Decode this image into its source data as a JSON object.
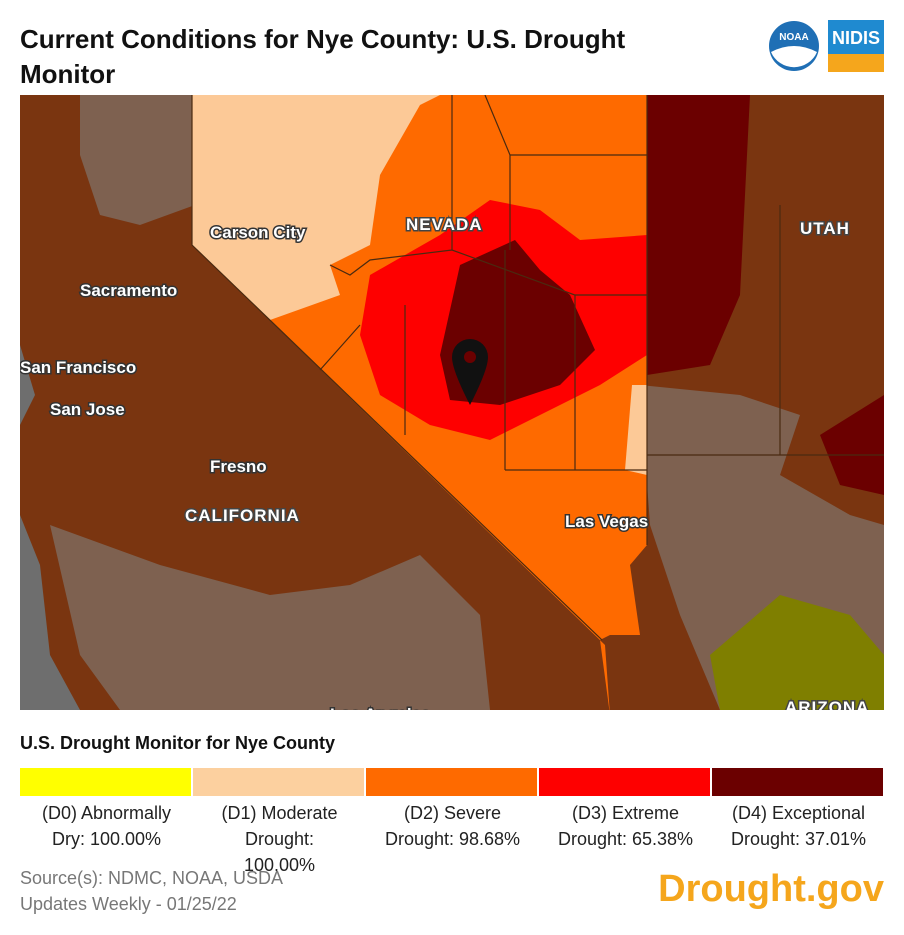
{
  "header": {
    "title": "Current Conditions for Nye County: U.S. Drought Monitor",
    "logos": [
      "NOAA",
      "NIDIS"
    ]
  },
  "map": {
    "labels": [
      "NEVADA",
      "UTAH",
      "Carson City",
      "Sacramento",
      "San Francisco",
      "San Jose",
      "Fresno",
      "CALIFORNIA",
      "Las Vegas",
      "Los Angeles",
      "ARIZONA"
    ]
  },
  "legend": {
    "title": "U.S. Drought Monitor for Nye County",
    "items": [
      {
        "label": "(D0) Abnormally Dry: 100.00%",
        "color": "#ffff00"
      },
      {
        "label": "(D1) Moderate Drought: 100.00%",
        "color": "#fcd09f"
      },
      {
        "label": "(D2) Severe Drought: 98.68%",
        "color": "#fe6a00"
      },
      {
        "label": "(D3) Extreme Drought: 65.38%",
        "color": "#fe0000"
      },
      {
        "label": "(D4) Exceptional Drought: 37.01%",
        "color": "#6b0000"
      }
    ]
  },
  "footer": {
    "sources": "Source(s): NDMC, NOAA, USDA",
    "updated": "Updates Weekly - 01/25/22",
    "brand": "Drought.gov"
  }
}
